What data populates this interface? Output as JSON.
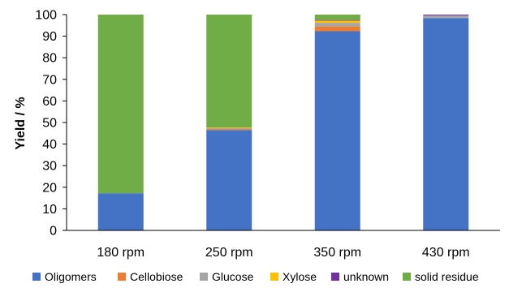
{
  "chart_data": {
    "type": "bar",
    "stacked": true,
    "title": "",
    "xlabel": "",
    "ylabel": "Yield / %",
    "ylim": [
      0,
      100
    ],
    "yticks": [
      0,
      10,
      20,
      30,
      40,
      50,
      60,
      70,
      80,
      90,
      100
    ],
    "grid": false,
    "legend_position": "bottom",
    "categories": [
      "180 rpm",
      "250 rpm",
      "350 rpm",
      "430 rpm"
    ],
    "series": [
      {
        "name": "Oligomers",
        "color": "#4472C4",
        "values": [
          17.2,
          46.5,
          92.3,
          98.4
        ]
      },
      {
        "name": "Cellobiose",
        "color": "#ED7D31",
        "values": [
          0.0,
          0.6,
          2.2,
          0.0
        ]
      },
      {
        "name": "Glucose",
        "color": "#A5A5A5",
        "values": [
          0.0,
          0.3,
          1.7,
          1.2
        ]
      },
      {
        "name": "Xylose",
        "color": "#FFC000",
        "values": [
          0.0,
          0.2,
          1.0,
          0.0
        ]
      },
      {
        "name": "unknown",
        "color": "#7030A0",
        "values": [
          0.0,
          0.0,
          0.3,
          0.4
        ]
      },
      {
        "name": "solid residue",
        "color": "#70AD47",
        "values": [
          82.8,
          52.4,
          2.5,
          0.0
        ]
      }
    ]
  }
}
